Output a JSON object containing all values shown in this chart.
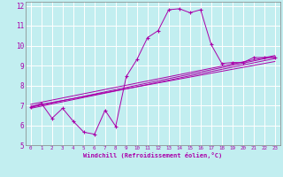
{
  "bg_color": "#c2eef0",
  "grid_color": "#ffffff",
  "line_color": "#aa00aa",
  "xlim": [
    -0.5,
    23.5
  ],
  "ylim": [
    5,
    12.2
  ],
  "yticks": [
    5,
    6,
    7,
    8,
    9,
    10,
    11,
    12
  ],
  "xticks": [
    0,
    1,
    2,
    3,
    4,
    5,
    6,
    7,
    8,
    9,
    10,
    11,
    12,
    13,
    14,
    15,
    16,
    17,
    18,
    19,
    20,
    21,
    22,
    23
  ],
  "xlabel": "Windchill (Refroidissement éolien,°C)",
  "curve_x": [
    0,
    1,
    2,
    3,
    4,
    5,
    6,
    7,
    8,
    9,
    10,
    11,
    12,
    13,
    14,
    15,
    16,
    17,
    18,
    19,
    20,
    21,
    22,
    23
  ],
  "curve_y": [
    6.9,
    7.1,
    6.35,
    6.85,
    6.2,
    5.65,
    5.55,
    6.75,
    5.95,
    8.45,
    9.3,
    10.4,
    10.75,
    11.8,
    11.85,
    11.65,
    11.8,
    10.05,
    9.1,
    9.15,
    9.15,
    9.4,
    9.4,
    9.4
  ],
  "trend1_x": [
    0,
    23
  ],
  "trend1_y": [
    6.9,
    9.45
  ],
  "trend2_x": [
    0,
    23
  ],
  "trend2_y": [
    6.85,
    9.35
  ],
  "trend3_x": [
    0,
    23
  ],
  "trend3_y": [
    6.95,
    9.2
  ],
  "trend4_x": [
    0,
    23
  ],
  "trend4_y": [
    7.05,
    9.5
  ]
}
